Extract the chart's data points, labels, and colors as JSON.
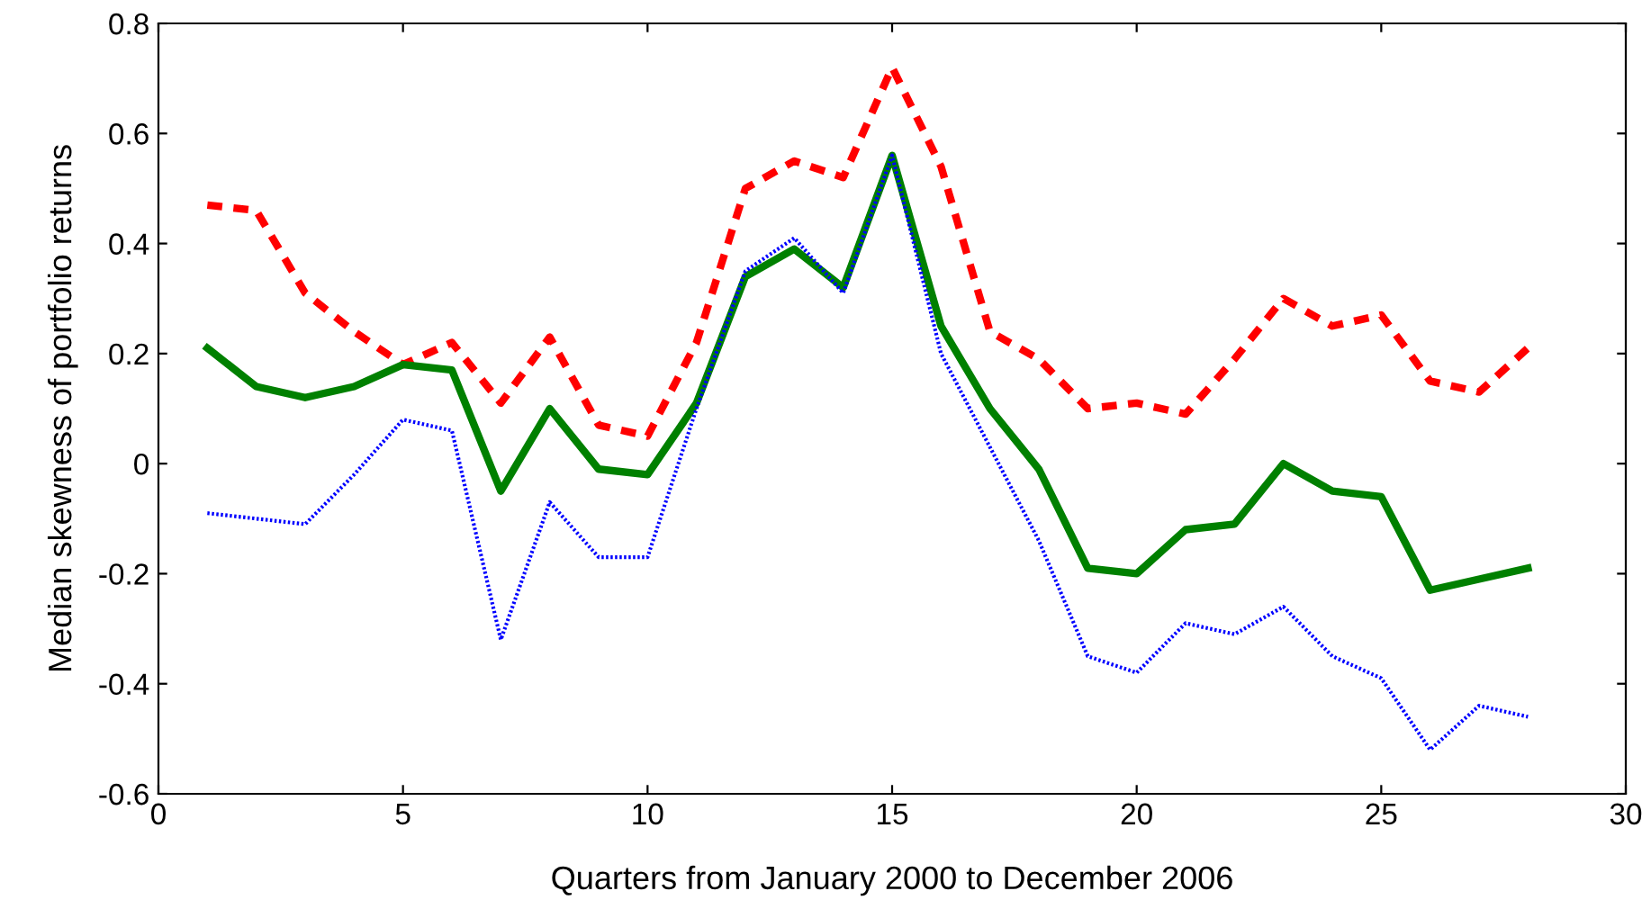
{
  "chart_data": {
    "type": "line",
    "xlabel": "Quarters from January 2000 to December 2006",
    "ylabel": "Median skewness of portfolio returns",
    "x": [
      1,
      2,
      3,
      4,
      5,
      6,
      7,
      8,
      9,
      10,
      11,
      12,
      13,
      14,
      15,
      16,
      17,
      18,
      19,
      20,
      21,
      22,
      23,
      24,
      25,
      26,
      27,
      28
    ],
    "series": [
      {
        "color": "#0000ff",
        "line_style": "dotted",
        "values": [
          -0.09,
          -0.1,
          -0.11,
          -0.02,
          0.08,
          0.06,
          -0.32,
          -0.07,
          -0.17,
          -0.17,
          0.1,
          0.35,
          0.41,
          0.31,
          0.56,
          0.2,
          0.03,
          -0.14,
          -0.35,
          -0.38,
          -0.29,
          -0.31,
          -0.26,
          -0.35,
          -0.39,
          -0.52,
          -0.44,
          -0.46
        ]
      },
      {
        "color": "#ff0000",
        "line_style": "dashed",
        "values": [
          0.47,
          0.46,
          0.31,
          0.24,
          0.18,
          0.22,
          0.11,
          0.23,
          0.07,
          0.05,
          0.22,
          0.5,
          0.55,
          0.52,
          0.72,
          0.54,
          0.24,
          0.19,
          0.1,
          0.11,
          0.09,
          0.19,
          0.3,
          0.25,
          0.27,
          0.15,
          0.13,
          0.21
        ]
      },
      {
        "color": "#008000",
        "line_style": "solid",
        "values": [
          0.21,
          0.14,
          0.12,
          0.14,
          0.18,
          0.17,
          -0.05,
          0.1,
          -0.01,
          -0.02,
          0.11,
          0.34,
          0.39,
          0.32,
          0.56,
          0.25,
          0.1,
          -0.01,
          -0.19,
          -0.2,
          -0.12,
          -0.11,
          0.0,
          -0.05,
          -0.06,
          -0.23,
          -0.21,
          -0.19
        ]
      }
    ],
    "xlim": [
      0,
      30
    ],
    "xticks": [
      0,
      5,
      10,
      15,
      20,
      25,
      30
    ],
    "ylim": [
      -0.6,
      0.8
    ],
    "yticks": [
      {
        "value": -0.6,
        "label": "-0.6"
      },
      {
        "value": -0.4,
        "label": "-0.4"
      },
      {
        "value": -0.2,
        "label": "-0.2"
      },
      0,
      0.2,
      0.4,
      0.6,
      0.8
    ],
    "grid": false,
    "legend": false
  }
}
